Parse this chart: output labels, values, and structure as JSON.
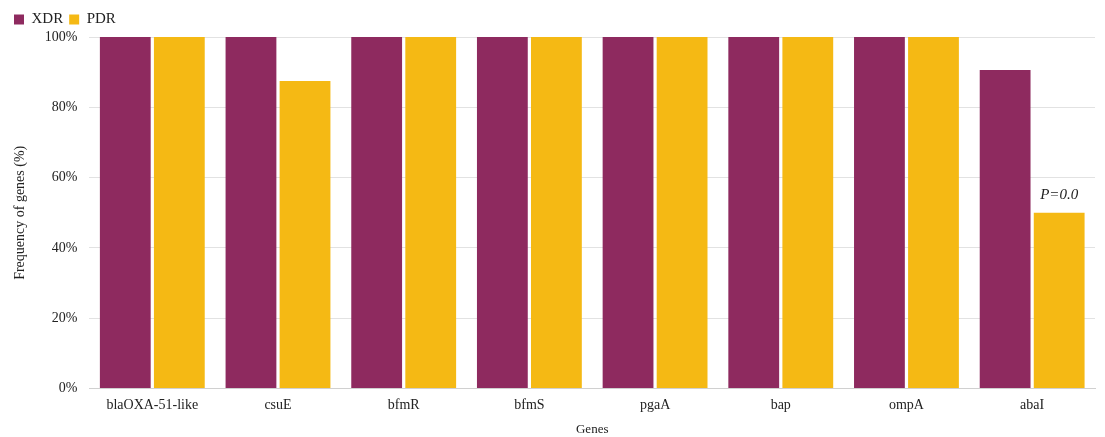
{
  "chart_data": {
    "type": "bar",
    "xlabel": "Genes",
    "ylabel": "Frequency of genes (%)",
    "categories": [
      "blaOXA-51-like",
      "csuE",
      "bfmR",
      "bfmS",
      "pgaA",
      "bap",
      "ompA",
      "abaI"
    ],
    "series": [
      {
        "name": "XDR",
        "color": "#8e2a5f",
        "values": [
          100,
          100,
          100,
          100,
          100,
          100,
          100,
          90.6
        ]
      },
      {
        "name": "PDR",
        "color": "#f5b914",
        "values": [
          100,
          87.5,
          100,
          100,
          100,
          100,
          100,
          50
        ]
      }
    ],
    "ylim": [
      0,
      100
    ],
    "yticks": [
      {
        "value": 0,
        "label": "0%"
      },
      {
        "value": 20,
        "label": "20%"
      },
      {
        "value": 40,
        "label": "40%"
      },
      {
        "value": 60,
        "label": "60%"
      },
      {
        "value": 80,
        "label": "80%"
      },
      {
        "value": 100,
        "label": "100%"
      }
    ],
    "grid": "y",
    "legend": "top left",
    "annotations": [
      {
        "text": "P=0.0",
        "x": "abaI",
        "y": 50
      }
    ]
  }
}
